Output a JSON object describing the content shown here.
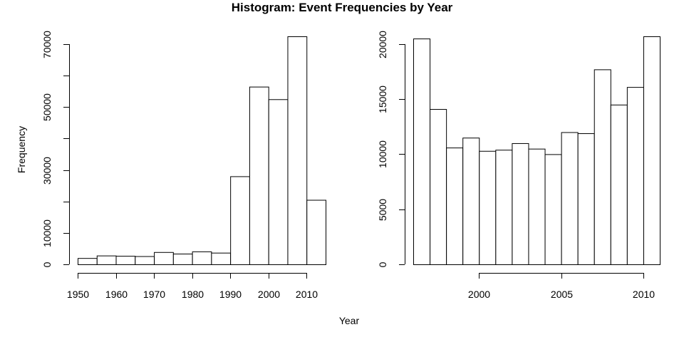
{
  "title": "Histogram: Event Frequencies by Year",
  "xlabel": "Year",
  "ylabel": "Frequency",
  "chart_data": [
    {
      "type": "bar",
      "bin_edges": [
        1950,
        1955,
        1960,
        1965,
        1970,
        1975,
        1980,
        1985,
        1990,
        1995,
        2000,
        2005,
        2010,
        2015
      ],
      "values": [
        2000,
        2800,
        2700,
        2600,
        3900,
        3400,
        4100,
        3700,
        28000,
        56500,
        52500,
        72500,
        20500
      ],
      "xlabel": "Year",
      "ylabel": "Frequency",
      "x_ticks": [
        1950,
        1960,
        1970,
        1980,
        1990,
        2000,
        2010
      ],
      "y_ticks": [
        0,
        10000,
        20000,
        30000,
        40000,
        50000,
        60000,
        70000
      ],
      "y_tick_labels": [
        "0",
        "10000",
        "",
        "30000",
        "",
        "50000",
        "",
        "70000"
      ],
      "xlim": [
        1950,
        2015
      ],
      "ylim": [
        0,
        72500
      ],
      "grid": false
    },
    {
      "type": "bar",
      "bin_edges": [
        1996,
        1997,
        1998,
        1999,
        2000,
        2001,
        2002,
        2003,
        2004,
        2005,
        2006,
        2007,
        2008,
        2009,
        2010,
        2011
      ],
      "values": [
        20500,
        14100,
        10600,
        11500,
        10300,
        10400,
        11000,
        10500,
        10000,
        12000,
        11900,
        17700,
        14500,
        16100,
        20700
      ],
      "x_ticks": [
        2000,
        2005,
        2010
      ],
      "y_ticks": [
        0,
        5000,
        10000,
        15000,
        20000
      ],
      "xlim": [
        1996,
        2011
      ],
      "ylim": [
        0,
        20700
      ],
      "grid": false
    }
  ]
}
